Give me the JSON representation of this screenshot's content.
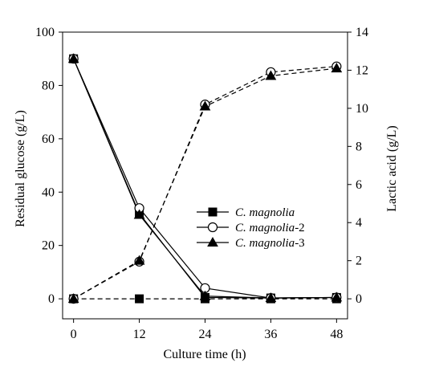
{
  "chart_data": {
    "type": "line",
    "xlabel": "Culture time (h)",
    "ylabel_left": "Residual glucose (g/L)",
    "ylabel_right": "Lactic acid (g/L)",
    "x": [
      0,
      12,
      24,
      36,
      48
    ],
    "xlim": [
      -2,
      50
    ],
    "ylim_left": [
      -7.5,
      100
    ],
    "ylim_right": [
      -1.05,
      14
    ],
    "xticks": [
      0,
      12,
      24,
      36,
      48
    ],
    "yticks_left": [
      0,
      20,
      40,
      60,
      80,
      100
    ],
    "yticks_right": [
      0,
      2,
      4,
      6,
      8,
      10,
      12,
      14
    ],
    "grid": false,
    "legend_position": "center-right",
    "series": [
      {
        "name": "C. magnolia",
        "name_italic": "C. magnolia",
        "name_suffix": "",
        "marker": "square",
        "fill": "#000000",
        "glucose": [
          90,
          32,
          0.5,
          0.3,
          0.5
        ],
        "lactic_acid": [
          0,
          0,
          0,
          0,
          0
        ]
      },
      {
        "name": "C. magnolia-2",
        "name_italic": "C. magnolia",
        "name_suffix": "-2",
        "marker": "circle",
        "fill": "#ffffff",
        "glucose": [
          90,
          34,
          4,
          0.3,
          0.5
        ],
        "lactic_acid": [
          0,
          1.95,
          10.2,
          11.9,
          12.2
        ]
      },
      {
        "name": "C. magnolia-3",
        "name_italic": "C. magnolia",
        "name_suffix": "-3",
        "marker": "triangle",
        "fill": "#000000",
        "glucose": [
          90,
          31.5,
          1,
          0.3,
          0.5
        ],
        "lactic_acid": [
          0,
          2,
          10.1,
          11.7,
          12.1
        ]
      }
    ],
    "line_styles": {
      "glucose": "solid",
      "lactic_acid": "dashed"
    },
    "colors": {
      "ink": "#000000"
    }
  }
}
